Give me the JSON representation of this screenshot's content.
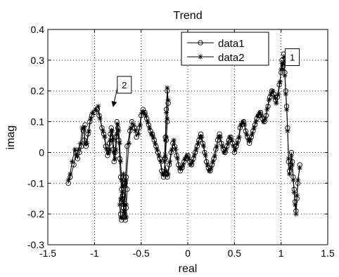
{
  "chart_data": {
    "type": "line",
    "title": "Trend",
    "xlabel": "real",
    "ylabel": "imag",
    "xlim": [
      -1.5,
      1.5
    ],
    "ylim": [
      -0.3,
      0.4
    ],
    "xticks": [
      -1.5,
      -1,
      -0.5,
      0,
      0.5,
      1,
      1.5
    ],
    "xtick_labels": [
      "-1.5",
      "-1",
      "-0.5",
      "0",
      "0.5",
      "1",
      "1.5"
    ],
    "yticks": [
      -0.3,
      -0.2,
      -0.1,
      0,
      0.1,
      0.2,
      0.3,
      0.4
    ],
    "ytick_labels": [
      "-0.3",
      "-0.2",
      "-0.1",
      "0",
      "0.1",
      "0.2",
      "0.3",
      "0.4"
    ],
    "grid": true,
    "legend": {
      "placement": "top-right",
      "entries": [
        "data1",
        "data2"
      ]
    },
    "series": [
      {
        "name": "data1",
        "marker": "circle",
        "x": [
          -1.28,
          -1.26,
          -1.22,
          -1.2,
          -1.18,
          -1.16,
          -1.14,
          -1.12,
          -1.1,
          -1.11,
          -1.09,
          -1.07,
          -1.05,
          -1.03,
          -1.0,
          -0.97,
          -0.95,
          -0.92,
          -0.9,
          -0.88,
          -0.86,
          -0.85,
          -0.84,
          -0.83,
          -0.82,
          -0.81,
          -0.8,
          -0.79,
          -0.78,
          -0.77,
          -0.76,
          -0.75,
          -0.74,
          -0.73,
          -0.72,
          -0.71,
          -0.7,
          -0.69,
          -0.68,
          -0.67,
          -0.66,
          -0.65,
          -0.66,
          -0.68,
          -0.7,
          -0.71,
          -0.72,
          -0.71,
          -0.69,
          -0.67,
          -0.65,
          -0.62,
          -0.6,
          -0.57,
          -0.55,
          -0.52,
          -0.5,
          -0.48,
          -0.46,
          -0.44,
          -0.42,
          -0.4,
          -0.38,
          -0.36,
          -0.34,
          -0.32,
          -0.3,
          -0.28,
          -0.26,
          -0.24,
          -0.23,
          -0.22,
          -0.21,
          -0.22,
          -0.23,
          -0.24,
          -0.25,
          -0.24,
          -0.22,
          -0.2,
          -0.18,
          -0.16,
          -0.14,
          -0.12,
          -0.1,
          -0.08,
          -0.06,
          -0.04,
          -0.02,
          0.0,
          0.02,
          0.04,
          0.06,
          0.08,
          0.1,
          0.12,
          0.14,
          0.16,
          0.18,
          0.2,
          0.22,
          0.24,
          0.26,
          0.28,
          0.3,
          0.32,
          0.34,
          0.36,
          0.38,
          0.4,
          0.42,
          0.44,
          0.46,
          0.48,
          0.5,
          0.52,
          0.54,
          0.56,
          0.58,
          0.6,
          0.62,
          0.64,
          0.66,
          0.68,
          0.7,
          0.72,
          0.74,
          0.76,
          0.78,
          0.8,
          0.82,
          0.84,
          0.86,
          0.88,
          0.9,
          0.92,
          0.94,
          0.96,
          0.98,
          1.0,
          1.01,
          1.02,
          1.03,
          1.04,
          1.05,
          1.06,
          1.07,
          1.08,
          1.09,
          1.1,
          1.11,
          1.12,
          1.13,
          1.14,
          1.15,
          1.16,
          1.17,
          1.18,
          1.2
        ],
        "y": [
          -0.1,
          -0.08,
          -0.04,
          0.0,
          -0.02,
          0.0,
          0.02,
          0.07,
          0.09,
          0.04,
          0.02,
          0.06,
          0.1,
          0.12,
          0.13,
          0.14,
          0.12,
          0.08,
          0.06,
          0.02,
          -0.01,
          0.0,
          0.03,
          0.06,
          0.08,
          0.05,
          0.01,
          -0.03,
          0.0,
          0.05,
          0.1,
          0.08,
          0.04,
          -0.02,
          -0.08,
          -0.12,
          -0.15,
          -0.18,
          -0.21,
          -0.22,
          -0.18,
          -0.12,
          -0.08,
          -0.1,
          -0.14,
          -0.16,
          -0.2,
          -0.22,
          -0.18,
          -0.1,
          0.02,
          0.07,
          0.1,
          0.08,
          0.05,
          0.08,
          0.12,
          0.14,
          0.13,
          0.11,
          0.09,
          0.07,
          0.06,
          0.04,
          0.02,
          0.0,
          -0.02,
          -0.06,
          -0.08,
          -0.02,
          0.04,
          0.1,
          0.16,
          0.2,
          0.14,
          0.05,
          -0.02,
          -0.07,
          -0.08,
          -0.04,
          0.0,
          0.03,
          0.02,
          -0.01,
          -0.04,
          -0.06,
          -0.05,
          -0.03,
          -0.02,
          -0.01,
          -0.03,
          -0.04,
          -0.02,
          0.0,
          0.02,
          0.04,
          0.06,
          0.03,
          0.0,
          -0.03,
          -0.05,
          -0.06,
          -0.04,
          -0.02,
          0.01,
          0.04,
          0.06,
          0.03,
          0.01,
          0.0,
          0.02,
          0.04,
          0.05,
          0.03,
          0.0,
          0.02,
          0.04,
          0.08,
          0.09,
          0.1,
          0.07,
          0.05,
          0.03,
          0.05,
          0.07,
          0.09,
          0.11,
          0.12,
          0.13,
          0.11,
          0.1,
          0.12,
          0.15,
          0.18,
          0.2,
          0.19,
          0.17,
          0.18,
          0.22,
          0.26,
          0.3,
          0.28,
          0.32,
          0.26,
          0.2,
          0.15,
          0.08,
          -0.03,
          -0.06,
          -0.04,
          0.0,
          -0.03,
          -0.08,
          -0.12,
          -0.16,
          -0.19,
          -0.15,
          -0.1,
          -0.04
        ]
      },
      {
        "name": "data2",
        "marker": "star",
        "x": [
          -1.28,
          -1.26,
          -1.24,
          -1.21,
          -1.19,
          -1.17,
          -1.15,
          -1.13,
          -1.11,
          -1.1,
          -1.08,
          -1.06,
          -1.04,
          -1.02,
          -0.99,
          -0.96,
          -0.94,
          -0.91,
          -0.89,
          -0.87,
          -0.85,
          -0.84,
          -0.83,
          -0.82,
          -0.81,
          -0.8,
          -0.79,
          -0.78,
          -0.77,
          -0.76,
          -0.75,
          -0.74,
          -0.73,
          -0.72,
          -0.71,
          -0.7,
          -0.69,
          -0.68,
          -0.67,
          -0.66,
          -0.66,
          -0.67,
          -0.69,
          -0.7,
          -0.72,
          -0.73,
          -0.72,
          -0.7,
          -0.68,
          -0.66,
          -0.63,
          -0.61,
          -0.58,
          -0.56,
          -0.53,
          -0.51,
          -0.49,
          -0.47,
          -0.45,
          -0.43,
          -0.41,
          -0.39,
          -0.37,
          -0.35,
          -0.33,
          -0.31,
          -0.29,
          -0.27,
          -0.25,
          -0.24,
          -0.23,
          -0.22,
          -0.21,
          -0.22,
          -0.23,
          -0.24,
          -0.25,
          -0.23,
          -0.21,
          -0.19,
          -0.17,
          -0.15,
          -0.13,
          -0.11,
          -0.09,
          -0.07,
          -0.05,
          -0.03,
          -0.01,
          0.01,
          0.03,
          0.05,
          0.07,
          0.09,
          0.11,
          0.13,
          0.15,
          0.17,
          0.19,
          0.21,
          0.23,
          0.25,
          0.27,
          0.29,
          0.31,
          0.33,
          0.35,
          0.37,
          0.39,
          0.41,
          0.43,
          0.45,
          0.47,
          0.49,
          0.51,
          0.53,
          0.55,
          0.57,
          0.59,
          0.61,
          0.63,
          0.65,
          0.67,
          0.69,
          0.71,
          0.73,
          0.75,
          0.77,
          0.79,
          0.81,
          0.83,
          0.85,
          0.87,
          0.89,
          0.91,
          0.93,
          0.95,
          0.97,
          0.99,
          1.0,
          1.01,
          1.02,
          1.03,
          1.04,
          1.05,
          1.06,
          1.07,
          1.08,
          1.09,
          1.1,
          1.11,
          1.12,
          1.13,
          1.14,
          1.15,
          1.16,
          1.17,
          1.18,
          1.2
        ],
        "y": [
          -0.09,
          -0.07,
          -0.03,
          0.01,
          -0.01,
          0.01,
          0.03,
          0.08,
          0.08,
          0.03,
          0.03,
          0.07,
          0.11,
          0.13,
          0.14,
          0.15,
          0.11,
          0.07,
          0.05,
          0.01,
          0.0,
          0.01,
          0.04,
          0.07,
          0.07,
          0.04,
          0.0,
          -0.02,
          0.01,
          0.06,
          0.09,
          0.07,
          0.03,
          -0.03,
          -0.09,
          -0.13,
          -0.16,
          -0.19,
          -0.2,
          -0.21,
          -0.17,
          -0.11,
          -0.07,
          -0.11,
          -0.15,
          -0.17,
          -0.21,
          -0.21,
          -0.17,
          -0.09,
          0.03,
          0.08,
          0.09,
          0.07,
          0.06,
          0.09,
          0.13,
          0.13,
          0.12,
          0.1,
          0.08,
          0.06,
          0.05,
          0.03,
          0.01,
          -0.01,
          -0.03,
          -0.07,
          -0.07,
          -0.01,
          0.05,
          0.11,
          0.17,
          0.21,
          0.13,
          0.04,
          -0.03,
          -0.06,
          -0.07,
          -0.03,
          0.01,
          0.04,
          0.01,
          -0.02,
          -0.05,
          -0.05,
          -0.04,
          -0.02,
          -0.01,
          -0.02,
          -0.04,
          -0.03,
          -0.01,
          0.01,
          0.03,
          0.05,
          0.05,
          0.02,
          -0.01,
          -0.04,
          -0.06,
          -0.05,
          -0.03,
          -0.01,
          0.02,
          0.05,
          0.05,
          0.02,
          0.0,
          0.01,
          0.03,
          0.05,
          0.04,
          0.02,
          0.01,
          0.03,
          0.05,
          0.09,
          0.1,
          0.09,
          0.06,
          0.04,
          0.04,
          0.06,
          0.08,
          0.1,
          0.12,
          0.13,
          0.12,
          0.1,
          0.11,
          0.14,
          0.17,
          0.19,
          0.2,
          0.18,
          0.16,
          0.19,
          0.23,
          0.27,
          0.29,
          0.27,
          0.31,
          0.25,
          0.19,
          0.14,
          0.07,
          -0.02,
          -0.07,
          -0.05,
          -0.01,
          -0.04,
          -0.09,
          -0.13,
          -0.17,
          -0.2,
          -0.14,
          -0.09,
          -0.05
        ]
      }
    ],
    "annotations": [
      {
        "text": "1",
        "x": 1.12,
        "y": 0.31,
        "target_x": 1.03,
        "target_y": 0.3
      },
      {
        "text": "2",
        "x": -0.68,
        "y": 0.22,
        "target_x": -0.8,
        "target_y": 0.15
      }
    ]
  }
}
